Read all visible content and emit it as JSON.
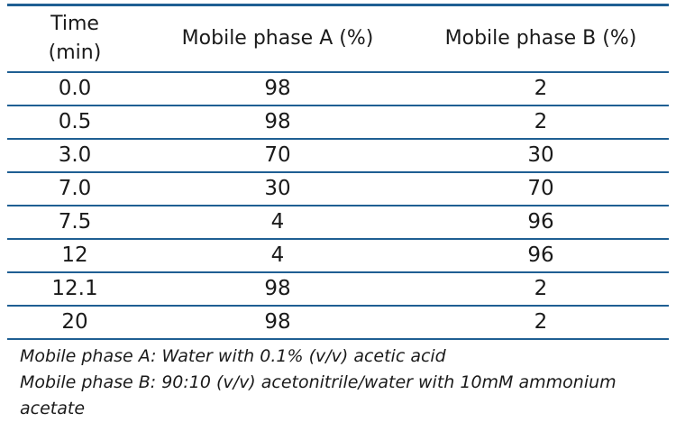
{
  "table": {
    "headers": {
      "time_line1": "Time",
      "time_line2": "(min)",
      "phase_a": "Mobile phase A (%)",
      "phase_b": "Mobile phase B (%)"
    },
    "rows": [
      {
        "time": "0.0",
        "a": "98",
        "b": "2"
      },
      {
        "time": "0.5",
        "a": "98",
        "b": "2"
      },
      {
        "time": "3.0",
        "a": "70",
        "b": "30"
      },
      {
        "time": "7.0",
        "a": "30",
        "b": "70"
      },
      {
        "time": "7.5",
        "a": "4",
        "b": "96"
      },
      {
        "time": "12",
        "a": "4",
        "b": "96"
      },
      {
        "time": "12.1",
        "a": "98",
        "b": "2"
      },
      {
        "time": "20",
        "a": "98",
        "b": "2"
      }
    ]
  },
  "notes": {
    "phase_a": "Mobile phase A: Water with 0.1% (v/v) acetic acid",
    "phase_b": "Mobile phase B: 90:10 (v/v) acetonitrile/water with 10mM ammonium acetate"
  },
  "colors": {
    "rule": "#1f5f93",
    "text": "#1a1a1a"
  }
}
